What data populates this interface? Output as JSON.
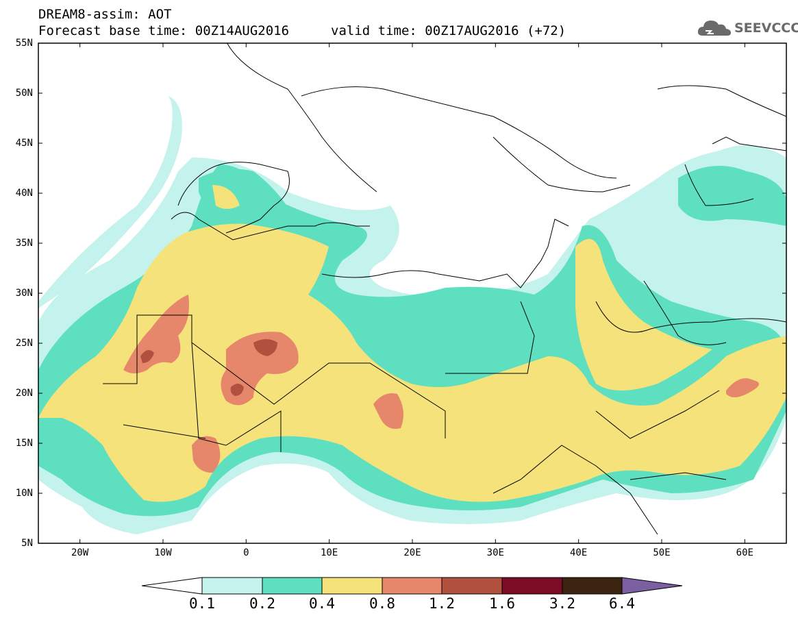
{
  "header": {
    "title": "DREAM8-assim: AOT",
    "forecast": "Forecast base time: 00Z14AUG2016",
    "valid": "valid time: 00Z17AUG2016 (+72)"
  },
  "logo": {
    "text": "SEEVCCC",
    "icon": "cloud-icon"
  },
  "map": {
    "variable": "AOT",
    "lat_labels": [
      "55N",
      "50N",
      "45N",
      "40N",
      "35N",
      "30N",
      "25N",
      "20N",
      "15N",
      "10N",
      "5N"
    ],
    "lon_labels": [
      "20W",
      "10W",
      "0",
      "10E",
      "20E",
      "30E",
      "40E",
      "50E",
      "60E"
    ],
    "lat_range": [
      5,
      55
    ],
    "lon_range": [
      -25,
      65
    ],
    "region": "North Africa, Mediterranean, Middle East"
  },
  "legend": {
    "labels": [
      "0.1",
      "0.2",
      "0.4",
      "0.8",
      "1.2",
      "1.6",
      "3.2",
      "6.4"
    ],
    "colors": [
      "#ffffff",
      "#c4f2ec",
      "#5ee0c0",
      "#f5e27a",
      "#e6876c",
      "#b0503f",
      "#7c0c26",
      "#3b2410",
      "#7b5fa0"
    ]
  }
}
